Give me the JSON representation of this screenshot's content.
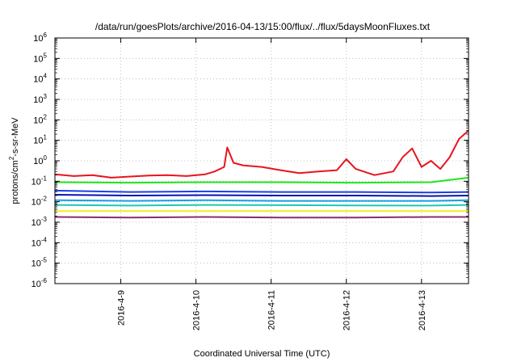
{
  "chart_data": {
    "type": "line",
    "title": "/data/run/goesPlots/archive/2016-04-13/15:00/flux/../flux/5daysMoonFluxes.txt",
    "xlabel": "Coordinated Universal Time (UTC)",
    "ylabel": "protons/cm2-s-sr-MeV",
    "ylabel_parts": [
      "protons/cm",
      "2",
      "-s-sr-MeV"
    ],
    "y_scale": "log",
    "ylim": [
      1e-06,
      1000000.0
    ],
    "y_ticks": [
      {
        "base": "10",
        "exp": "-6"
      },
      {
        "base": "10",
        "exp": "-5"
      },
      {
        "base": "10",
        "exp": "-4"
      },
      {
        "base": "10",
        "exp": "-3"
      },
      {
        "base": "10",
        "exp": "-2"
      },
      {
        "base": "10",
        "exp": "-1"
      },
      {
        "base": "10",
        "exp": "0"
      },
      {
        "base": "10",
        "exp": "1"
      },
      {
        "base": "10",
        "exp": "2"
      },
      {
        "base": "10",
        "exp": "3"
      },
      {
        "base": "10",
        "exp": "4"
      },
      {
        "base": "10",
        "exp": "5"
      },
      {
        "base": "10",
        "exp": "6"
      }
    ],
    "x_scale": "date",
    "xlim": [
      "2016-04-08T03:00",
      "2016-04-13T15:00"
    ],
    "x_ticks": [
      "2016-4-9",
      "2016-4-10",
      "2016-4-11",
      "2016-4-12",
      "2016-4-13"
    ],
    "grid": true,
    "series": [
      {
        "color": "#e8141d",
        "x": [
          "2016-04-08T03:00",
          "2016-04-08T09:00",
          "2016-04-08T15:00",
          "2016-04-08T21:00",
          "2016-04-09T03:00",
          "2016-04-09T09:00",
          "2016-04-09T15:00",
          "2016-04-09T21:00",
          "2016-04-10T03:00",
          "2016-04-10T06:00",
          "2016-04-10T09:00",
          "2016-04-10T10:00",
          "2016-04-10T12:00",
          "2016-04-10T15:00",
          "2016-04-10T21:00",
          "2016-04-11T03:00",
          "2016-04-11T09:00",
          "2016-04-11T15:00",
          "2016-04-11T21:00",
          "2016-04-12T00:00",
          "2016-04-12T03:00",
          "2016-04-12T09:00",
          "2016-04-12T15:00",
          "2016-04-12T18:00",
          "2016-04-12T21:00",
          "2016-04-13T00:00",
          "2016-04-13T03:00",
          "2016-04-13T06:00",
          "2016-04-13T09:00",
          "2016-04-13T12:00",
          "2016-04-13T15:00"
        ],
        "y": [
          0.22,
          0.18,
          0.2,
          0.15,
          0.17,
          0.19,
          0.2,
          0.18,
          0.22,
          0.3,
          0.5,
          4.5,
          0.8,
          0.6,
          0.5,
          0.35,
          0.25,
          0.3,
          0.35,
          1.2,
          0.4,
          0.2,
          0.3,
          1.5,
          4.0,
          0.5,
          1.0,
          0.4,
          1.5,
          12,
          30
        ]
      },
      {
        "color": "#1ee61e",
        "x": [
          "2016-04-08T03:00",
          "2016-04-09T03:00",
          "2016-04-10T03:00",
          "2016-04-11T03:00",
          "2016-04-12T03:00",
          "2016-04-13T03:00",
          "2016-04-13T15:00"
        ],
        "y": [
          0.09,
          0.085,
          0.09,
          0.09,
          0.085,
          0.09,
          0.15
        ]
      },
      {
        "color": "#1a3fe6",
        "x": [
          "2016-04-08T03:00",
          "2016-04-09T03:00",
          "2016-04-10T03:00",
          "2016-04-11T03:00",
          "2016-04-12T03:00",
          "2016-04-13T03:00",
          "2016-04-13T15:00"
        ],
        "y": [
          0.035,
          0.03,
          0.032,
          0.03,
          0.03,
          0.028,
          0.03
        ]
      },
      {
        "color": "#0a12b0",
        "x": [
          "2016-04-08T03:00",
          "2016-04-09T03:00",
          "2016-04-10T03:00",
          "2016-04-11T03:00",
          "2016-04-12T03:00",
          "2016-04-13T03:00",
          "2016-04-13T15:00"
        ],
        "y": [
          0.022,
          0.02,
          0.021,
          0.02,
          0.02,
          0.019,
          0.02
        ]
      },
      {
        "color": "#1aa0e6",
        "x": [
          "2016-04-08T03:00",
          "2016-04-09T03:00",
          "2016-04-10T03:00",
          "2016-04-11T03:00",
          "2016-04-12T03:00",
          "2016-04-13T03:00",
          "2016-04-13T15:00"
        ],
        "y": [
          0.012,
          0.011,
          0.012,
          0.011,
          0.011,
          0.011,
          0.012
        ]
      },
      {
        "color": "#1ec8b4",
        "x": [
          "2016-04-08T03:00",
          "2016-04-09T03:00",
          "2016-04-10T03:00",
          "2016-04-11T03:00",
          "2016-04-12T03:00",
          "2016-04-13T03:00",
          "2016-04-13T15:00"
        ],
        "y": [
          0.007,
          0.0065,
          0.007,
          0.0068,
          0.0066,
          0.0065,
          0.007
        ]
      },
      {
        "color": "#f0f01e",
        "x": [
          "2016-04-08T03:00",
          "2016-04-09T03:00",
          "2016-04-10T03:00",
          "2016-04-11T03:00",
          "2016-04-12T03:00",
          "2016-04-13T03:00",
          "2016-04-13T15:00"
        ],
        "y": [
          0.0035,
          0.0035,
          0.0035,
          0.0035,
          0.0035,
          0.0035,
          0.0035
        ]
      },
      {
        "color": "#8c2c6e",
        "x": [
          "2016-04-08T03:00",
          "2016-04-09T03:00",
          "2016-04-10T03:00",
          "2016-04-11T03:00",
          "2016-04-12T03:00",
          "2016-04-13T03:00",
          "2016-04-13T15:00"
        ],
        "y": [
          0.0018,
          0.0017,
          0.0018,
          0.0017,
          0.0017,
          0.0018,
          0.0018
        ]
      }
    ]
  }
}
